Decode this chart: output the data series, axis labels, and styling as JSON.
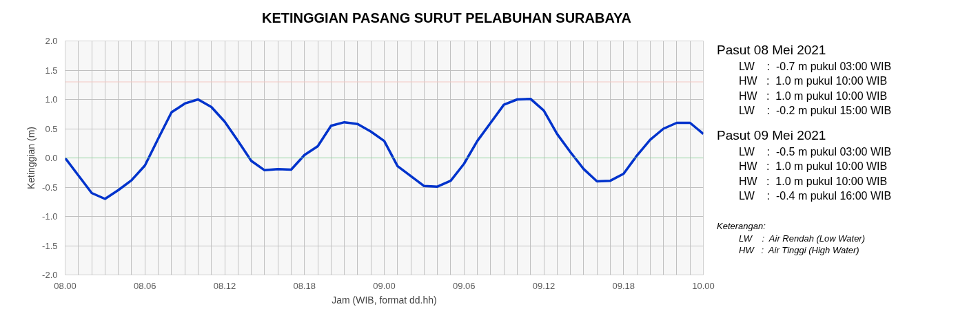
{
  "chart_data": {
    "type": "line",
    "title": "KETINGGIAN PASANG SURUT PELABUHAN SURABAYA",
    "xlabel": "Jam (WIB, format dd.hh)",
    "ylabel": "Ketinggian (m)",
    "categories": [
      "08.00",
      null,
      null,
      null,
      null,
      null,
      "08.06",
      null,
      null,
      null,
      null,
      null,
      "08.12",
      null,
      null,
      null,
      null,
      null,
      "08.18",
      null,
      null,
      null,
      null,
      null,
      "09.00",
      null,
      null,
      null,
      null,
      null,
      "09.06",
      null,
      null,
      null,
      null,
      null,
      "09.12",
      null,
      null,
      null,
      null,
      null,
      "09.18",
      null,
      null,
      null,
      null,
      null,
      "10.00"
    ],
    "series": [
      {
        "color": "#0033cc",
        "values": [
          0.0,
          -0.3,
          -0.6,
          -0.7,
          -0.55,
          -0.38,
          -0.13,
          0.33,
          0.78,
          0.93,
          1.0,
          0.87,
          0.62,
          0.29,
          -0.05,
          -0.21,
          -0.19,
          -0.2,
          0.05,
          0.2,
          0.55,
          0.61,
          0.58,
          0.45,
          0.29,
          -0.14,
          -0.31,
          -0.48,
          -0.49,
          -0.39,
          -0.1,
          0.29,
          0.6,
          0.91,
          1.0,
          1.01,
          0.81,
          0.41,
          0.1,
          -0.19,
          -0.4,
          -0.39,
          -0.27,
          0.04,
          0.31,
          0.5,
          0.6,
          0.6,
          0.41
        ]
      }
    ],
    "ylim": [
      -2.0,
      2.0
    ],
    "yticks": [
      {
        "value": -2.0,
        "label": "-2.0"
      },
      {
        "value": -1.5,
        "label": "-1.5"
      },
      {
        "value": -1.0,
        "label": "-1.0"
      },
      {
        "value": -0.5,
        "label": "-0.5"
      },
      {
        "value": 0,
        "label": "0.0"
      },
      {
        "value": 0.5,
        "label": "0.5"
      },
      {
        "value": 1.0,
        "label": "1.0"
      },
      {
        "value": 1.5,
        "label": "1.5"
      },
      {
        "value": 2.0,
        "label": "2.0"
      }
    ],
    "grid": true,
    "marker": "none",
    "line_style": "solid",
    "ref_lines": [
      {
        "axis": "y",
        "value": 1.3,
        "color": "#f4c7c3"
      },
      {
        "axis": "y",
        "value": 0,
        "color": "#8fd19e"
      }
    ],
    "annotations": [
      "Pasut 08 Mei 2021",
      "LW    :  -0.7 m pukul 03:00 WIB",
      "HW   :  1.0 m pukul 10:00 WIB",
      "HW   :  1.0 m pukul 10:00 WIB",
      "LW    :  -0.2 m pukul 15:00 WIB",
      "Pasut 09 Mei 2021",
      "LW    :  -0.5 m pukul 03:00 WIB",
      "HW   :  1.0 m pukul 10:00 WIB",
      "HW   :  1.0 m pukul 10:00 WIB",
      "LW    :  -0.4 m pukul 16:00 WIB",
      "Keterangan:",
      "LW    :  Air Rendah (Low Water)",
      "HW   :  Air Tinggi (High Water)"
    ]
  }
}
